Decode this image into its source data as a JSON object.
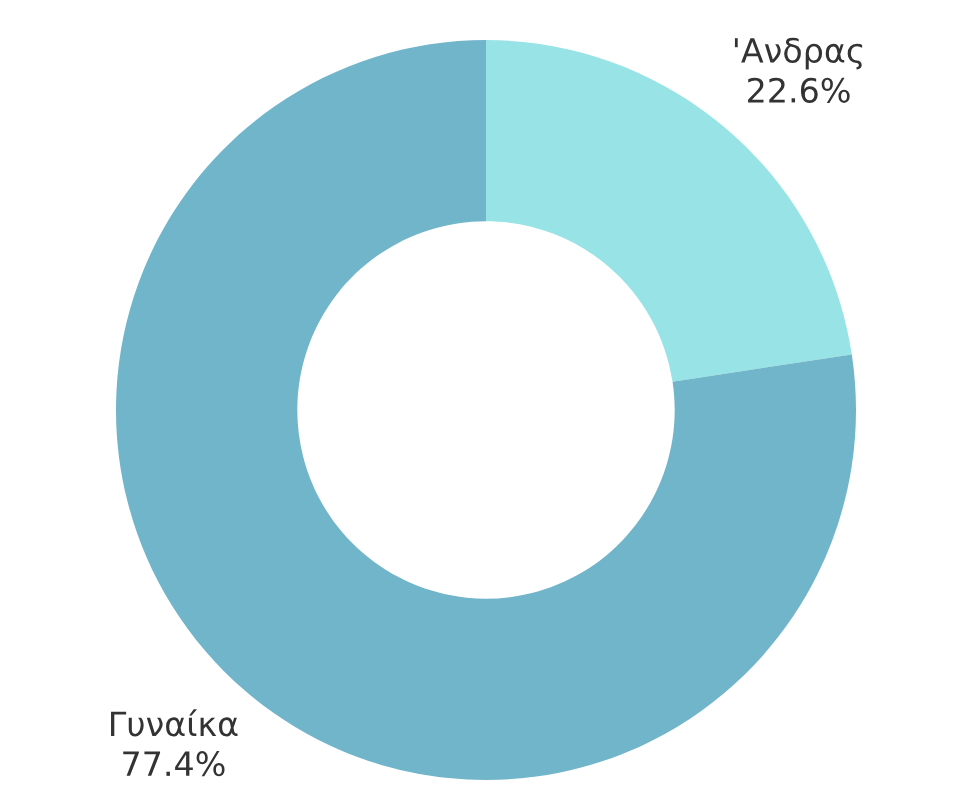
{
  "chart_data": {
    "type": "donut",
    "categories": [
      "'Ανδρας",
      "Γυναίκα"
    ],
    "values": [
      22.6,
      77.4
    ],
    "colors": [
      "#97e3e6",
      "#71b5ca"
    ],
    "value_labels": [
      "22.6%",
      "77.4%"
    ],
    "legend": false
  }
}
